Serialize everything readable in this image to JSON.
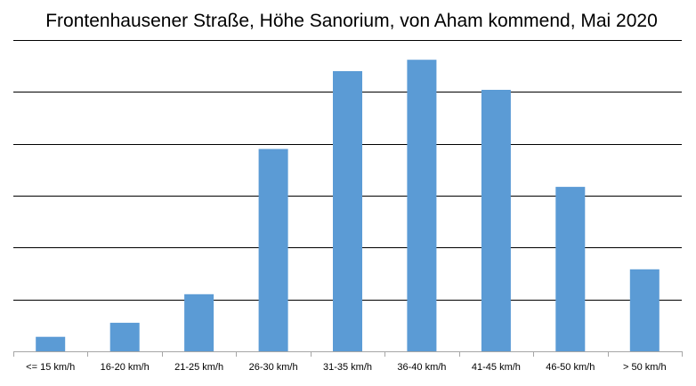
{
  "chart_data": {
    "type": "bar",
    "title": "Frontenhausener Straße, Höhe Sanorium, von Aham kommend, Mai 2020",
    "xlabel": "",
    "ylabel": "",
    "categories": [
      "<= 15 km/h",
      "16-20 km/h",
      "21-25 km/h",
      "26-30 km/h",
      "31-35 km/h",
      "36-40 km/h",
      "41-45 km/h",
      "46-50 km/h",
      "> 50 km/h"
    ],
    "values": [
      0.28,
      0.55,
      1.1,
      3.9,
      5.4,
      5.62,
      5.04,
      3.17,
      1.58
    ],
    "ylim": [
      0,
      6
    ],
    "grid": true,
    "legend": "none",
    "colors": {
      "bar": "#5b9bd5",
      "grid": "#000000",
      "axis": "#a6a6a6"
    }
  }
}
